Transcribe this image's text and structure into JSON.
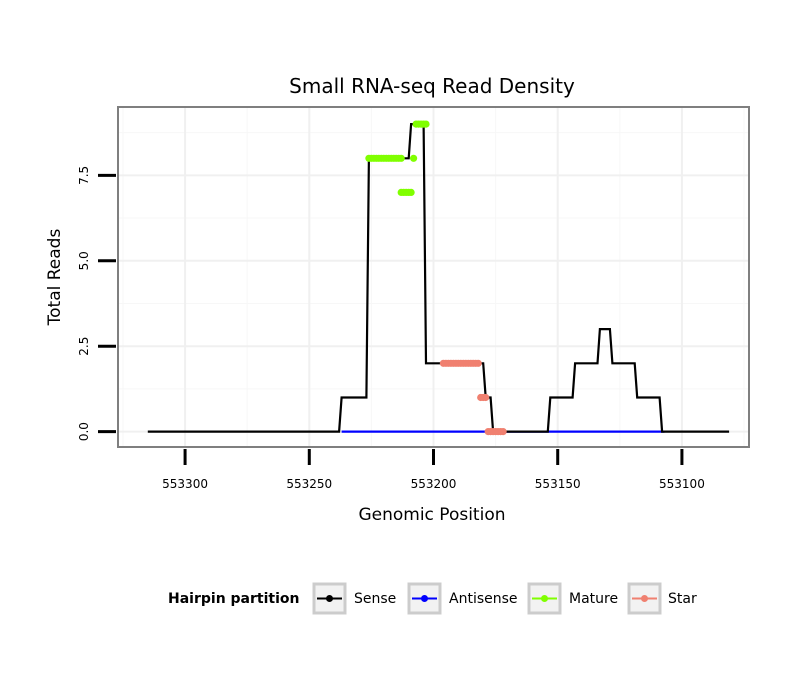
{
  "chart_data": {
    "type": "line",
    "title": "Small RNA-seq Read Density",
    "xlabel": "Genomic Position",
    "ylabel": "Total Reads",
    "x_reversed": true,
    "xlim": [
      553327,
      553073
    ],
    "ylim": [
      -0.45,
      9.5
    ],
    "x_ticks": [
      553300,
      553250,
      553200,
      553150,
      553100
    ],
    "x_tick_labels": [
      "553300",
      "553250",
      "553200",
      "553150",
      "553100"
    ],
    "y_ticks": [
      0,
      2.5,
      5,
      7.5
    ],
    "y_tick_labels": [
      "0.0",
      "2.5",
      "5.0",
      "7.5"
    ],
    "grid": true,
    "series": [
      {
        "name": "Sense",
        "color": "#000000",
        "style": "line",
        "points": [
          [
            553315,
            0
          ],
          [
            553238,
            0
          ],
          [
            553237,
            1
          ],
          [
            553227,
            1
          ],
          [
            553226,
            8
          ],
          [
            553210,
            8
          ],
          [
            553209,
            9
          ],
          [
            553204,
            9
          ],
          [
            553203,
            2
          ],
          [
            553180,
            2
          ],
          [
            553179,
            1
          ],
          [
            553177,
            1
          ],
          [
            553176,
            0
          ],
          [
            553154,
            0
          ],
          [
            553153,
            1
          ],
          [
            553144,
            1
          ],
          [
            553143,
            2
          ],
          [
            553134,
            2
          ],
          [
            553133,
            3
          ],
          [
            553129,
            3
          ],
          [
            553128,
            2
          ],
          [
            553119,
            2
          ],
          [
            553118,
            1
          ],
          [
            553109,
            1
          ],
          [
            553108,
            0
          ],
          [
            553081,
            0
          ]
        ]
      },
      {
        "name": "Antisense",
        "color": "#0000ff",
        "style": "line",
        "points": [
          [
            553237,
            0
          ],
          [
            553107,
            0
          ]
        ]
      },
      {
        "name": "Mature",
        "color": "#80ff00",
        "style": "points",
        "points": [
          [
            553226,
            8
          ],
          [
            553225,
            8
          ],
          [
            553224,
            8
          ],
          [
            553223,
            8
          ],
          [
            553222,
            8
          ],
          [
            553221,
            8
          ],
          [
            553220,
            8
          ],
          [
            553219,
            8
          ],
          [
            553218,
            8
          ],
          [
            553217,
            8
          ],
          [
            553216,
            8
          ],
          [
            553215,
            8
          ],
          [
            553214,
            8
          ],
          [
            553213,
            8
          ],
          [
            553213,
            7
          ],
          [
            553212,
            7
          ],
          [
            553211,
            7
          ],
          [
            553210,
            7
          ],
          [
            553209,
            7
          ],
          [
            553208,
            8
          ],
          [
            553207,
            9
          ],
          [
            553206,
            9
          ],
          [
            553205,
            9
          ],
          [
            553204,
            9
          ],
          [
            553203,
            9
          ]
        ]
      },
      {
        "name": "Star",
        "color": "#f08070",
        "style": "points",
        "points": [
          [
            553196,
            2
          ],
          [
            553195,
            2
          ],
          [
            553194,
            2
          ],
          [
            553193,
            2
          ],
          [
            553192,
            2
          ],
          [
            553191,
            2
          ],
          [
            553190,
            2
          ],
          [
            553189,
            2
          ],
          [
            553188,
            2
          ],
          [
            553187,
            2
          ],
          [
            553186,
            2
          ],
          [
            553185,
            2
          ],
          [
            553184,
            2
          ],
          [
            553183,
            2
          ],
          [
            553182,
            2
          ],
          [
            553181,
            1
          ],
          [
            553180,
            1
          ],
          [
            553179,
            1
          ],
          [
            553178,
            0
          ],
          [
            553177,
            0
          ],
          [
            553176,
            0
          ],
          [
            553175,
            0
          ],
          [
            553174,
            0
          ],
          [
            553173,
            0
          ],
          [
            553172,
            0
          ]
        ]
      }
    ],
    "legend": {
      "title": "Hairpin partition",
      "position": "bottom",
      "entries": [
        {
          "label": "Sense",
          "color": "#000000"
        },
        {
          "label": "Antisense",
          "color": "#0000ff"
        },
        {
          "label": "Mature",
          "color": "#80ff00"
        },
        {
          "label": "Star",
          "color": "#f08070"
        }
      ]
    }
  }
}
